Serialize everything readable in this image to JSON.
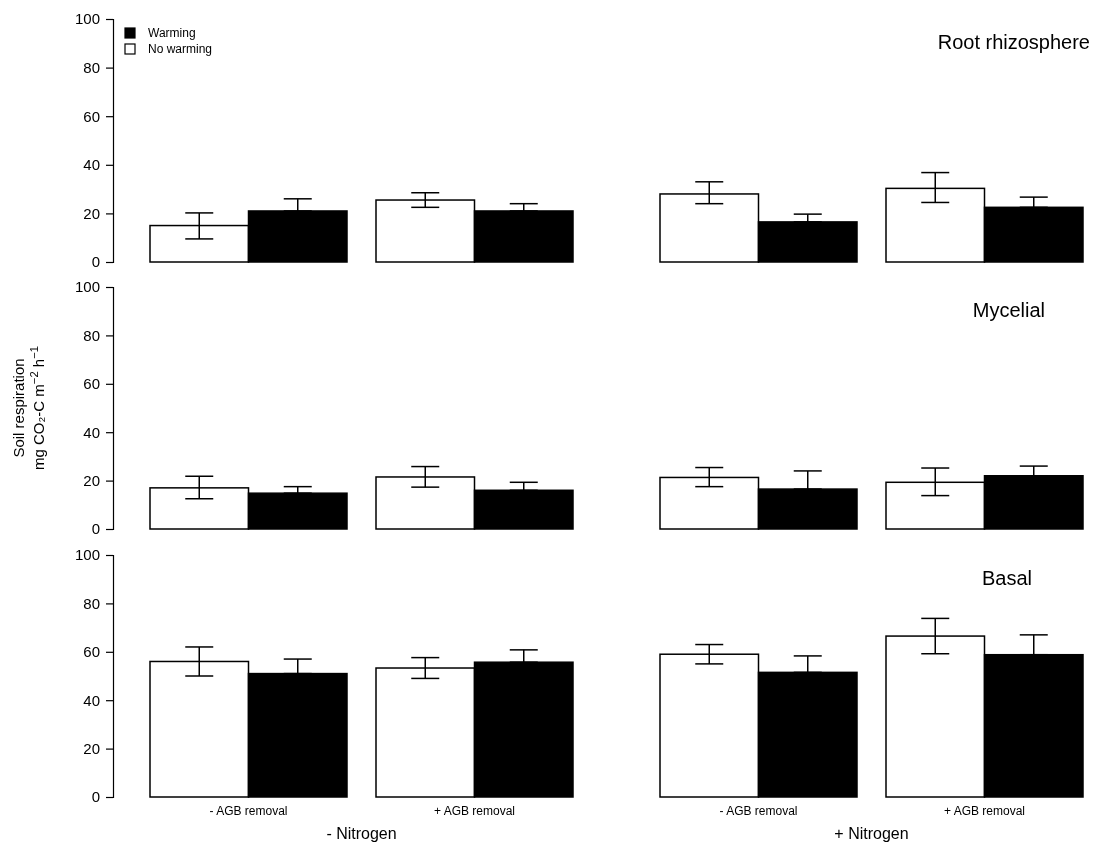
{
  "chart_data": [
    {
      "type": "bar",
      "title": "Root rhizosphere",
      "categories": [
        null,
        null,
        null,
        null
      ],
      "ylim": [
        0,
        100
      ],
      "yticks": [
        0,
        20,
        40,
        60,
        80,
        100
      ],
      "tick_labels": "y",
      "legend": "top left",
      "grid": false,
      "series": [
        {
          "name": "No warming",
          "color": "#ffffff",
          "values": [
            15,
            25.5,
            28,
            30.3
          ],
          "errors": [
            [
              9.5,
              20.2
            ],
            [
              22.5,
              28.5
            ],
            [
              24,
              33
            ],
            [
              24.5,
              36.8
            ]
          ]
        },
        {
          "name": "Warming",
          "color": "#000000",
          "values": [
            21,
            21,
            16.5,
            22.5
          ],
          "errors": [
            [
              21,
              26
            ],
            [
              21,
              24
            ],
            [
              16.5,
              19.7
            ],
            [
              22.5,
              26.7
            ]
          ]
        }
      ]
    },
    {
      "type": "bar",
      "title": "Mycelial",
      "ylabel": "Soil respiration\nmg CO₂-C  m$^{−2}$ h$^{−1}$",
      "categories": [
        null,
        null,
        null,
        null
      ],
      "ylim": [
        0,
        100
      ],
      "yticks": [
        0,
        20,
        40,
        60,
        80,
        100
      ],
      "tick_labels": "y",
      "grid": false,
      "series": [
        {
          "color": "#ffffff",
          "values": [
            17,
            21.5,
            21.3,
            19.3
          ],
          "errors": [
            [
              12.5,
              21.8
            ],
            [
              17.3,
              25.8
            ],
            [
              17.5,
              25.4
            ],
            [
              13.8,
              25.2
            ]
          ]
        },
        {
          "color": "#000000",
          "values": [
            14.8,
            16,
            16.5,
            22
          ],
          "errors": [
            [
              14.8,
              17.5
            ],
            [
              16,
              19.3
            ],
            [
              16.5,
              24
            ],
            [
              22,
              26
            ]
          ]
        }
      ]
    },
    {
      "type": "bar",
      "title": "Basal",
      "categories": [
        "- AGB removal",
        "+ AGB removal",
        "- AGB removal",
        "+ AGB removal"
      ],
      "ylim": [
        0,
        100
      ],
      "yticks": [
        0,
        20,
        40,
        60,
        80,
        100
      ],
      "grid": false,
      "annotations": [
        "- Nitrogen",
        "+ Nitrogen"
      ],
      "series": [
        {
          "color": "#ffffff",
          "values": [
            56,
            53.3,
            59,
            66.5
          ],
          "errors": [
            [
              50,
              62
            ],
            [
              49,
              57.6
            ],
            [
              55,
              63
            ],
            [
              59.2,
              73.8
            ]
          ]
        },
        {
          "color": "#000000",
          "values": [
            51,
            55.7,
            51.5,
            58.8
          ],
          "errors": [
            [
              51,
              57
            ],
            [
              55.7,
              60.8
            ],
            [
              51.5,
              58.3
            ],
            [
              58.8,
              67
            ]
          ]
        }
      ]
    }
  ]
}
